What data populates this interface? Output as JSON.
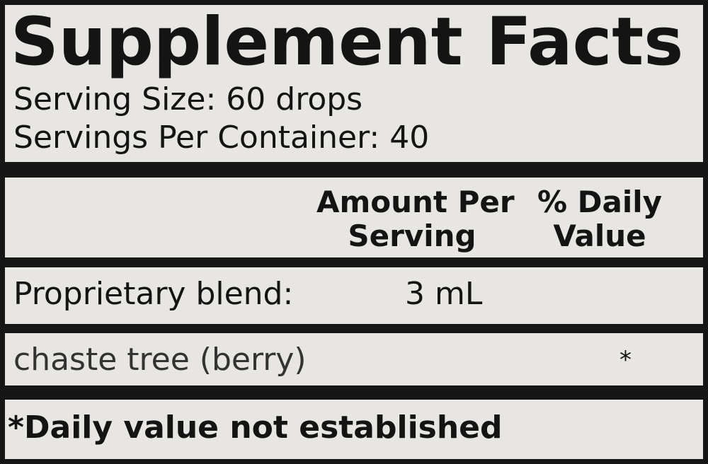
{
  "title": "Supplement Facts",
  "serving_size": "Serving Size: 60 drops",
  "servings_per_container": "Servings Per Container: 40",
  "columns": {
    "amount_line1": "Amount Per",
    "amount_line2": "Serving",
    "dv_line1": "% Daily",
    "dv_line2": "Value"
  },
  "rows": [
    {
      "name": "Proprietary blend:",
      "amount": "3 mL",
      "dv": ""
    },
    {
      "name": "chaste tree (berry)",
      "amount": "",
      "dv": "*"
    }
  ],
  "footnote": "*Daily value not established"
}
